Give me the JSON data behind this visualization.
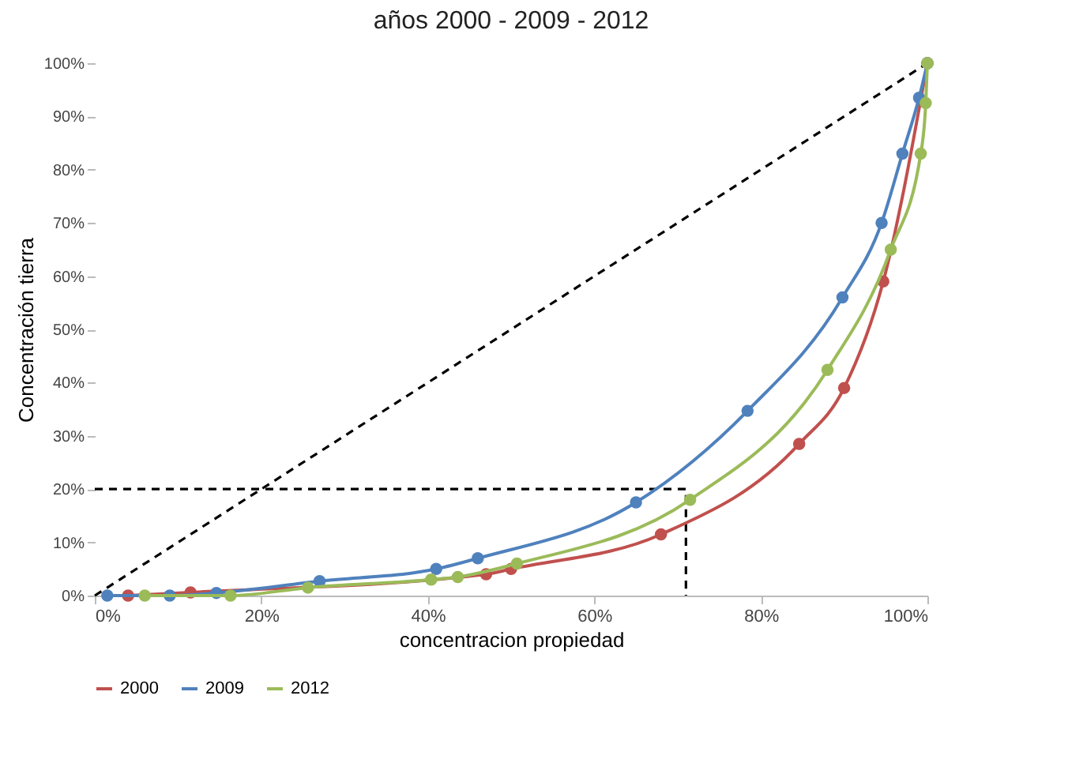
{
  "chart_data": {
    "type": "line",
    "title": "años 2000 - 2009 - 2012",
    "xlabel": "concentracion propiedad",
    "ylabel": "Concentración tierra",
    "xlim": [
      0,
      100
    ],
    "ylim": [
      0,
      100
    ],
    "xticks": [
      {
        "value": 0,
        "label": "0%"
      },
      {
        "value": 20,
        "label": "20%"
      },
      {
        "value": 40,
        "label": "40%"
      },
      {
        "value": 60,
        "label": "60%"
      },
      {
        "value": 80,
        "label": "80%"
      },
      {
        "value": 100,
        "label": "100%"
      }
    ],
    "yticks": [
      {
        "value": 0,
        "label": "0%"
      },
      {
        "value": 10,
        "label": "10%"
      },
      {
        "value": 20,
        "label": "20%"
      },
      {
        "value": 30,
        "label": "30%"
      },
      {
        "value": 40,
        "label": "40%"
      },
      {
        "value": 50,
        "label": "50%"
      },
      {
        "value": 60,
        "label": "60%"
      },
      {
        "value": 70,
        "label": "70%"
      },
      {
        "value": 80,
        "label": "80%"
      },
      {
        "value": 90,
        "label": "90%"
      },
      {
        "value": 100,
        "label": "100%"
      }
    ],
    "grid": false,
    "legend": "bottom",
    "marker": "circle",
    "series": [
      {
        "type": "line",
        "x": [
          0,
          100
        ],
        "values": [
          0,
          100
        ],
        "color": "#000000",
        "line_style": "dashed",
        "marker": "none"
      },
      {
        "type": "line",
        "x": [
          0,
          71,
          71
        ],
        "values": [
          20,
          20,
          0
        ],
        "color": "#000000",
        "line_style": "dashed",
        "marker": "none"
      },
      {
        "name": "2000",
        "color": "#c0504d",
        "x": [
          4,
          11.5,
          47,
          50,
          68,
          84.6,
          90,
          94.7,
          100
        ],
        "values": [
          0,
          0.6,
          4,
          5,
          11.5,
          28.5,
          39,
          59,
          100
        ]
      },
      {
        "name": "2009",
        "color": "#4f81bd",
        "x": [
          1.5,
          9,
          14.6,
          27,
          41,
          46,
          65,
          78.4,
          89.8,
          94.5,
          97,
          99,
          100
        ],
        "values": [
          0,
          0,
          0.5,
          2.7,
          5,
          7,
          17.5,
          34.7,
          56,
          70,
          83,
          93.5,
          100
        ]
      },
      {
        "name": "2012",
        "color": "#9bbb59",
        "x": [
          6,
          16.3,
          25.6,
          40.4,
          43.6,
          50.7,
          71.5,
          88,
          95.6,
          99.2,
          99.8,
          100
        ],
        "values": [
          0,
          0,
          1.5,
          3,
          3.5,
          6,
          18,
          42.4,
          65,
          83,
          92.5,
          100
        ]
      }
    ]
  }
}
